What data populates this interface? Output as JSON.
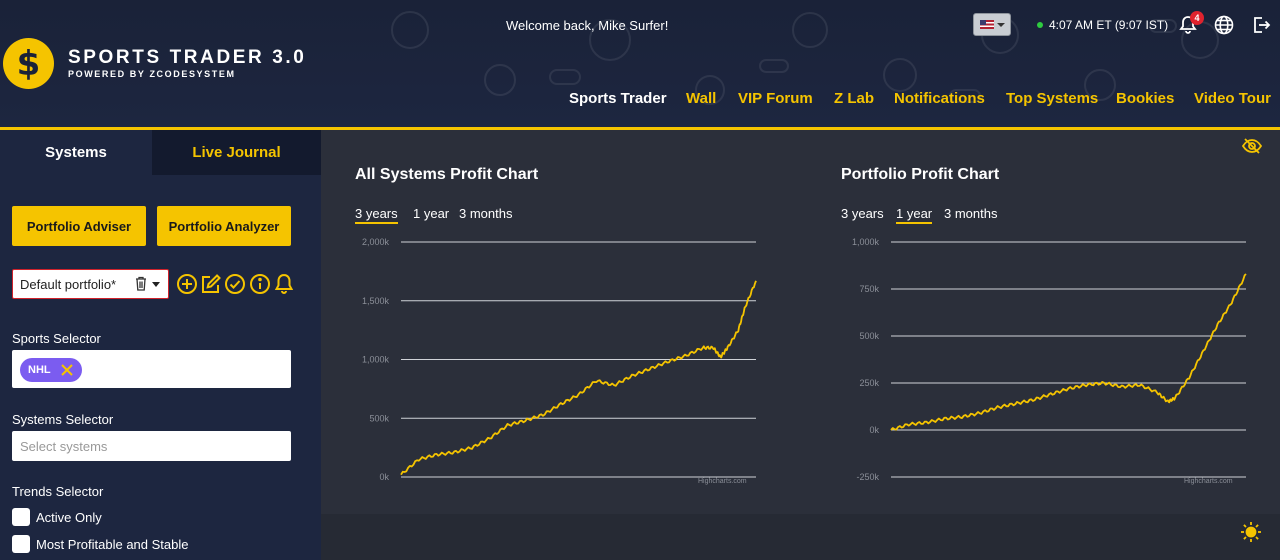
{
  "header": {
    "brand_symbol": "$",
    "brand_title": "SPORTS TRADER 3.0",
    "brand_subtitle": "POWERED BY ZCODESYSTEM",
    "welcome": "Welcome back, Mike Surfer!",
    "clock": "4:07 AM ET (9:07 IST)",
    "notification_count": "4",
    "flag_icon": "us-flag-icon",
    "accent_color": "#f5c400",
    "nav": [
      "Sports Trader",
      "Wall",
      "VIP Forum",
      "Z Lab",
      "Notifications",
      "Top Systems",
      "Bookies",
      "Video Tour"
    ]
  },
  "sidebar": {
    "tabs": [
      "Systems",
      "Live Journal"
    ],
    "buttons": [
      "Portfolio Adviser",
      "Portfolio Analyzer"
    ],
    "portfolio_value": "Default portfolio*",
    "sports_selector_label": "Sports Selector",
    "sports_chip": "NHL",
    "chip_color": "#7b5cf0",
    "systems_selector_label": "Systems Selector",
    "systems_placeholder": "Select systems",
    "trends_selector_label": "Trends Selector",
    "checkboxes": [
      "Active Only",
      "Most Profitable and Stable"
    ]
  },
  "charts_section": {
    "left_title": "All Systems Profit Chart",
    "right_title": "Portfolio Profit Chart",
    "ranges": [
      "3 years",
      "1 year",
      "3 months"
    ],
    "left_selected": "3 years",
    "right_selected": "1 year",
    "credit": "Highcharts.com"
  },
  "chart_data": [
    {
      "type": "line",
      "title": "All Systems Profit Chart",
      "ylim": [
        0,
        2000000
      ],
      "y_ticks": [
        "0k",
        "500k",
        "1,000k",
        "1,500k",
        "2,000k"
      ],
      "line_color": "#f5c400",
      "grid": true,
      "x": [
        0,
        0.05,
        0.1,
        0.15,
        0.2,
        0.25,
        0.3,
        0.35,
        0.4,
        0.45,
        0.5,
        0.55,
        0.6,
        0.65,
        0.7,
        0.75,
        0.8,
        0.85,
        0.88,
        0.9,
        0.92,
        0.95,
        0.97,
        1.0
      ],
      "values": [
        20000,
        150000,
        190000,
        210000,
        250000,
        330000,
        440000,
        480000,
        530000,
        620000,
        700000,
        820000,
        780000,
        860000,
        920000,
        980000,
        1030000,
        1100000,
        1100000,
        1020000,
        1100000,
        1250000,
        1450000,
        1670000
      ]
    },
    {
      "type": "line",
      "title": "Portfolio Profit Chart",
      "ylim": [
        -250000,
        1000000
      ],
      "y_ticks": [
        "-250k",
        "0k",
        "250k",
        "500k",
        "750k",
        "1,000k"
      ],
      "line_color": "#f5c400",
      "grid": true,
      "x": [
        0,
        0.05,
        0.1,
        0.15,
        0.2,
        0.25,
        0.3,
        0.35,
        0.4,
        0.45,
        0.5,
        0.55,
        0.6,
        0.65,
        0.7,
        0.75,
        0.78,
        0.8,
        0.84,
        0.88,
        0.92,
        0.96,
        1.0
      ],
      "values": [
        0,
        30000,
        40000,
        60000,
        70000,
        90000,
        120000,
        140000,
        160000,
        190000,
        220000,
        240000,
        250000,
        230000,
        240000,
        200000,
        150000,
        170000,
        280000,
        420000,
        560000,
        680000,
        830000
      ]
    }
  ]
}
